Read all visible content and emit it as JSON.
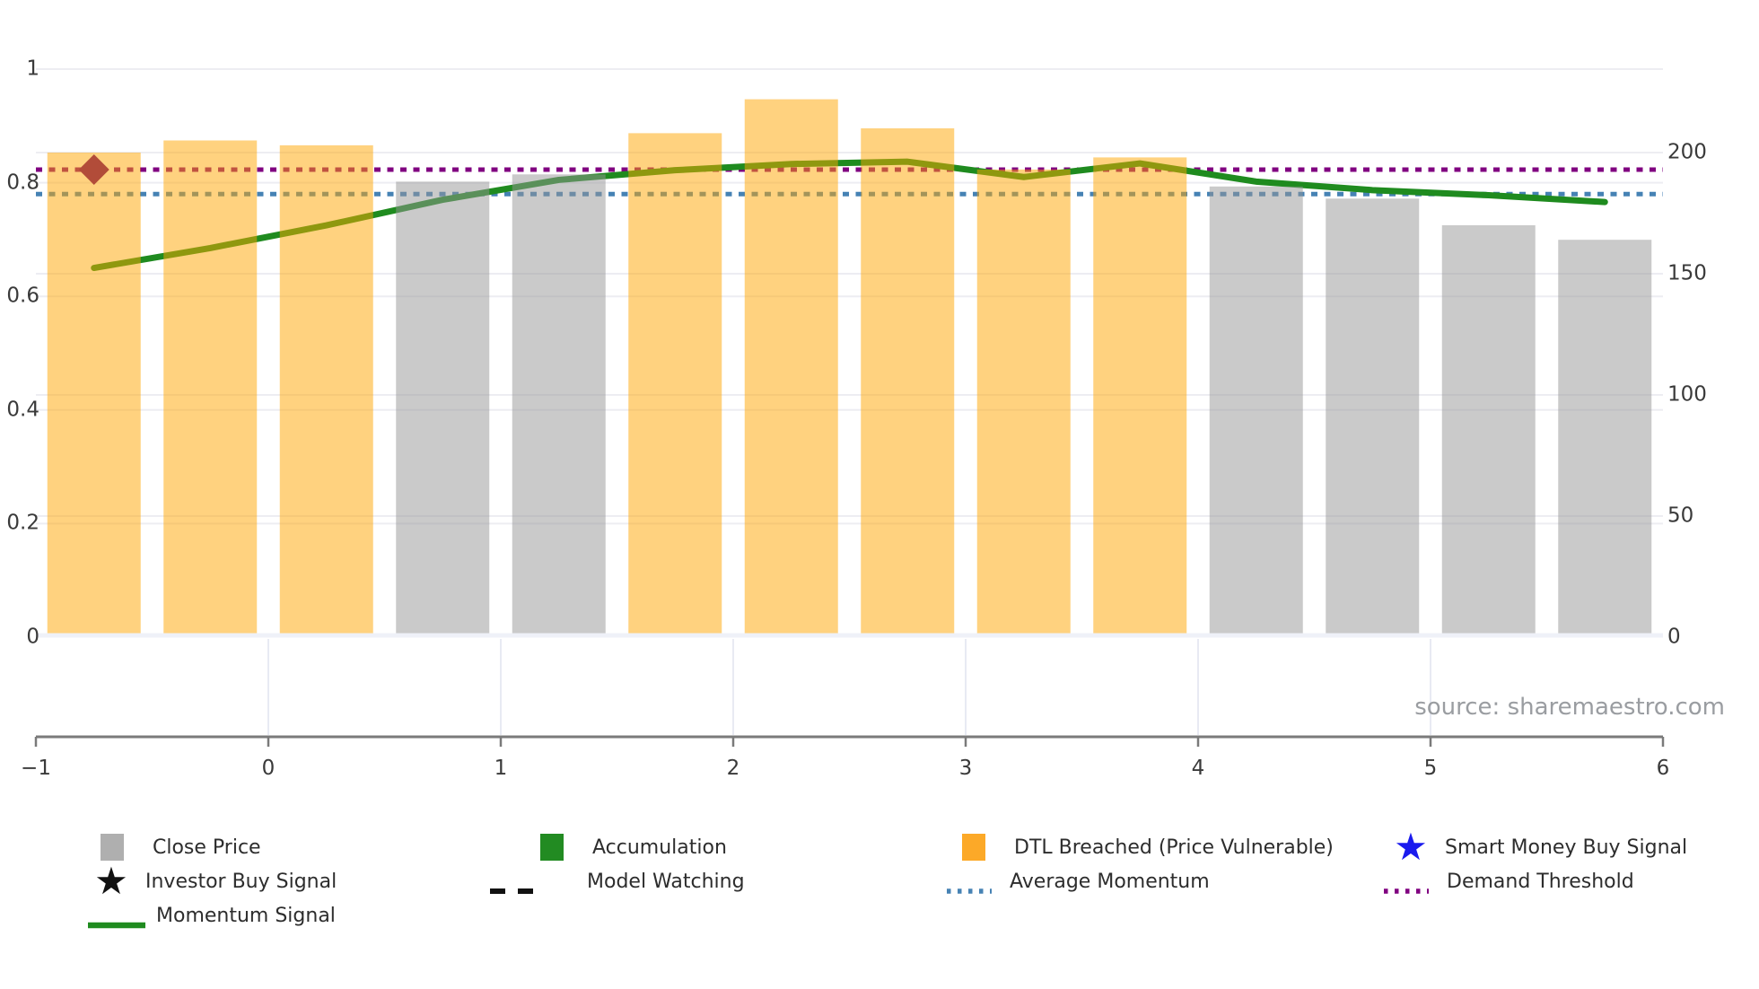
{
  "source_credit": "source: sharemaestro.com",
  "colors": {
    "bar_breached_fill": "rgba(255,165,0,0.5)",
    "bar_normal_fill": "rgba(150,150,150,0.5)",
    "momentum_line": "#1f8b1f",
    "average_momentum": "#4682b4",
    "demand_threshold": "#800080",
    "buy_marker": "#b24c39",
    "legend_gray": "#afafaf",
    "legend_green": "#228b22",
    "legend_orange": "#fca928",
    "legend_blue_star": "#1a1aee",
    "legend_black": "#111111",
    "grid": "#ededf2",
    "axis_spine": "#7a7a7a"
  },
  "left_axis": {
    "labels": [
      "1",
      "0.8",
      "0.6",
      "0.4",
      "0.2",
      "0"
    ]
  },
  "right_axis": {
    "labels": [
      "200",
      "150",
      "100",
      "50",
      "0"
    ]
  },
  "x_axis": {
    "labels": [
      "−1",
      "0",
      "1",
      "2",
      "3",
      "4",
      "5",
      "6"
    ]
  },
  "legend": {
    "items": [
      {
        "label": "Close Price"
      },
      {
        "label": "Accumulation"
      },
      {
        "label": "DTL Breached (Price Vulnerable)"
      },
      {
        "label": "Smart Money Buy Signal"
      },
      {
        "label": "Investor Buy Signal"
      },
      {
        "label": "Model Watching"
      },
      {
        "label": "Average Momentum"
      },
      {
        "label": "Demand Threshold"
      },
      {
        "label": "Momentum Signal"
      }
    ],
    "star_glyph": "★"
  },
  "chart_data": {
    "type": "combo-bar-line",
    "x": [
      -0.75,
      -0.25,
      0.25,
      0.75,
      1.25,
      1.75,
      2.25,
      2.75,
      3.25,
      3.75,
      4.25,
      4.75,
      5.25,
      5.75
    ],
    "series": [
      {
        "name": "Close Price",
        "type": "bar",
        "axis": "right",
        "values": [
          200,
          205,
          203,
          188,
          191,
          208,
          222,
          210,
          193,
          198,
          186,
          181,
          170,
          164
        ],
        "dtl_breached": [
          true,
          true,
          true,
          false,
          false,
          true,
          true,
          true,
          true,
          true,
          false,
          false,
          false,
          false
        ]
      },
      {
        "name": "Momentum Signal",
        "type": "line",
        "axis": "left",
        "values": [
          0.65,
          0.685,
          0.725,
          0.77,
          0.805,
          0.822,
          0.833,
          0.837,
          0.81,
          0.834,
          0.802,
          0.787,
          0.778,
          0.766
        ]
      }
    ],
    "thresholds": [
      {
        "name": "Average Momentum",
        "axis": "left",
        "value": 0.78,
        "style": "dotted"
      },
      {
        "name": "Demand Threshold",
        "axis": "left",
        "value": 0.823,
        "style": "dotted"
      }
    ],
    "markers": [
      {
        "name": "buy-signal-marker",
        "shape": "diamond",
        "x": -0.75,
        "value": 0.823
      }
    ],
    "left_axis": {
      "ylim": [
        0,
        1.05
      ],
      "ticks": [
        0,
        0.2,
        0.4,
        0.6,
        0.8,
        1.0
      ],
      "label": ""
    },
    "right_axis": {
      "ylim": [
        0,
        250
      ],
      "ticks": [
        0,
        50,
        100,
        150,
        200
      ],
      "label": ""
    },
    "x_axis": {
      "xlim": [
        -1,
        6
      ],
      "ticks": [
        -1,
        0,
        1,
        2,
        3,
        4,
        5,
        6
      ],
      "grid_ticks": [
        0,
        1,
        2,
        3,
        4,
        5
      ]
    },
    "grid": true,
    "legend_position": "bottom"
  }
}
